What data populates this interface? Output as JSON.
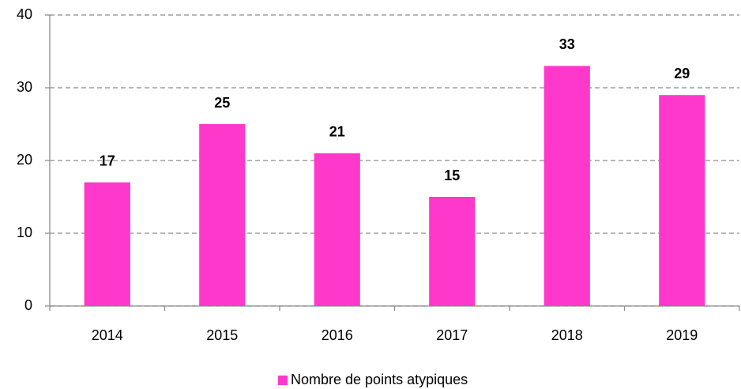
{
  "chart_data": {
    "type": "bar",
    "categories": [
      "2014",
      "2015",
      "2016",
      "2017",
      "2018",
      "2019"
    ],
    "series": [
      {
        "name": "Nombre de points atypiques",
        "color": "#ff38cc",
        "values": [
          17,
          25,
          21,
          15,
          33,
          29
        ]
      }
    ],
    "ylim": [
      0,
      40
    ],
    "yticks": [
      0,
      10,
      20,
      30,
      40
    ],
    "grid": true,
    "legend": "bottom"
  }
}
